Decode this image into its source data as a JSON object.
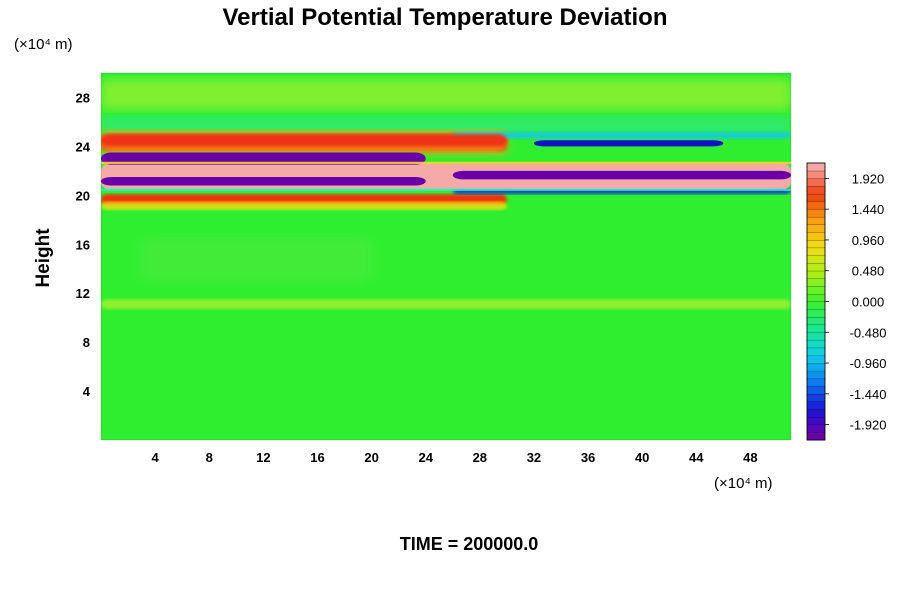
{
  "chart_data": {
    "type": "heatmap",
    "title": "Vertial Potential Temperature Deviation",
    "xlabel": "",
    "ylabel": "Height",
    "x_unit_label": "(×10⁴ m)",
    "y_unit_label": "(×10⁴ m)",
    "xlim": [
      0,
      51
    ],
    "ylim": [
      0,
      30
    ],
    "x_ticks": [
      4,
      8,
      12,
      16,
      20,
      24,
      28,
      32,
      36,
      40,
      44,
      48
    ],
    "y_ticks": [
      4,
      8,
      12,
      16,
      20,
      24,
      28
    ],
    "colorbar": {
      "range": [
        -2.16,
        2.16
      ],
      "ticks": [
        "1.920",
        "1.440",
        "0.960",
        "0.480",
        "0.000",
        "-0.480",
        "-0.960",
        "-1.440",
        "-1.920"
      ],
      "colors": [
        "#6a00a8",
        "#1c14d8",
        "#0a7bf0",
        "#10d0e8",
        "#18e890",
        "#3cf030",
        "#a8f018",
        "#f0e010",
        "#f8a010",
        "#f04010",
        "#f4a8a4"
      ]
    },
    "features": [
      {
        "kind": "positive",
        "value": 1.92,
        "x_range": [
          0,
          51
        ],
        "y_range": [
          20.5,
          22.6
        ]
      },
      {
        "kind": "negative",
        "value": -1.92,
        "x_range": [
          0,
          24
        ],
        "y_range": [
          22.5,
          23.5
        ]
      },
      {
        "kind": "negative",
        "value": -1.92,
        "x_range": [
          0,
          24
        ],
        "y_range": [
          20.8,
          21.5
        ]
      },
      {
        "kind": "negative",
        "value": -1.92,
        "x_range": [
          26,
          51
        ],
        "y_range": [
          21.3,
          22.0
        ]
      },
      {
        "kind": "negative",
        "value": -1.6,
        "x_range": [
          32,
          46
        ],
        "y_range": [
          24.0,
          24.5
        ]
      },
      {
        "kind": "positive",
        "value": 1.5,
        "x_range": [
          0,
          30
        ],
        "y_range": [
          24.0,
          25.0
        ]
      }
    ],
    "annotation": "TIME = 200000.0",
    "grid": false,
    "legend": "colorbar-right"
  }
}
